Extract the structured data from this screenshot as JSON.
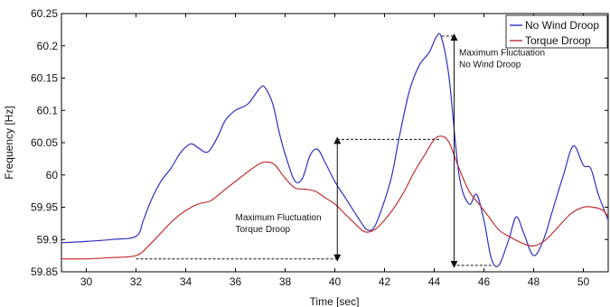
{
  "chart_data": {
    "type": "line",
    "xlabel": "Time [sec]",
    "ylabel": "Frequency [Hz]",
    "xlim": [
      29,
      51
    ],
    "ylim": [
      59.85,
      60.25
    ],
    "xticks": [
      "30",
      "32",
      "34",
      "36",
      "38",
      "40",
      "42",
      "44",
      "46",
      "48",
      "50"
    ],
    "yticks": [
      "59.85",
      "59.9",
      "59.95",
      "60",
      "60.05",
      "60.1",
      "60.15",
      "60.2",
      "60.25"
    ],
    "grid": false,
    "legend_position": "top-right",
    "series": [
      {
        "name": "No Wind Droop",
        "color": "#3030c0",
        "x": [
          29.0,
          30.0,
          31.0,
          32.0,
          32.3,
          32.6,
          33.0,
          33.4,
          33.8,
          34.2,
          34.5,
          34.8,
          35.0,
          35.3,
          35.6,
          36.0,
          36.5,
          37.0,
          37.2,
          37.5,
          37.8,
          38.1,
          38.4,
          38.7,
          39.0,
          39.3,
          39.6,
          40.0,
          40.5,
          41.0,
          41.3,
          41.6,
          42.0,
          42.3,
          42.6,
          43.0,
          43.4,
          43.8,
          44.1,
          44.3,
          44.6,
          45.0,
          45.4,
          45.7,
          46.0,
          46.3,
          46.6,
          47.0,
          47.3,
          47.6,
          48.0,
          48.4,
          48.8,
          49.2,
          49.6,
          50.0,
          50.3,
          50.6,
          51.0
        ],
        "y": [
          59.895,
          59.897,
          59.9,
          59.905,
          59.93,
          59.96,
          59.99,
          60.01,
          60.035,
          60.048,
          60.042,
          60.035,
          60.04,
          60.06,
          60.085,
          60.1,
          60.11,
          60.135,
          60.135,
          60.11,
          60.06,
          60.02,
          59.99,
          59.995,
          60.03,
          60.04,
          60.02,
          59.99,
          59.96,
          59.93,
          59.915,
          59.92,
          59.96,
          60.0,
          60.06,
          60.13,
          60.17,
          60.19,
          60.215,
          60.212,
          60.15,
          60.0,
          59.955,
          59.97,
          59.93,
          59.87,
          59.86,
          59.9,
          59.935,
          59.91,
          59.875,
          59.9,
          59.95,
          60.0,
          60.045,
          60.015,
          60.01,
          59.97,
          59.93
        ]
      },
      {
        "name": "Torque Droop",
        "color": "#c03030",
        "x": [
          29.0,
          30.0,
          31.0,
          32.0,
          32.5,
          33.0,
          33.5,
          34.0,
          34.5,
          35.0,
          35.5,
          36.0,
          36.5,
          37.0,
          37.3,
          37.6,
          38.0,
          38.4,
          38.8,
          39.2,
          39.6,
          40.0,
          40.4,
          40.8,
          41.2,
          41.6,
          42.0,
          42.4,
          42.8,
          43.2,
          43.6,
          44.0,
          44.3,
          44.6,
          45.0,
          45.4,
          45.8,
          46.2,
          46.6,
          47.0,
          47.5,
          48.0,
          48.5,
          49.0,
          49.5,
          50.0,
          50.4,
          50.8,
          51.0
        ],
        "y": [
          59.87,
          59.87,
          59.872,
          59.875,
          59.89,
          59.91,
          59.93,
          59.945,
          59.955,
          59.96,
          59.975,
          59.99,
          60.005,
          60.018,
          60.02,
          60.015,
          59.995,
          59.98,
          59.978,
          59.975,
          59.965,
          59.955,
          59.94,
          59.925,
          59.912,
          59.915,
          59.93,
          59.95,
          59.975,
          60.005,
          60.03,
          60.055,
          60.06,
          60.05,
          60.01,
          59.975,
          59.955,
          59.935,
          59.915,
          59.905,
          59.895,
          59.89,
          59.9,
          59.92,
          59.94,
          59.95,
          59.95,
          59.945,
          59.935
        ]
      }
    ],
    "annotations": [
      {
        "lines": [
          "Maximum Fluctuation",
          "No Wind Droop"
        ],
        "arrow_x": 44.8,
        "y_top": 60.215,
        "y_bottom": 59.86,
        "dash_top_from_x": 44.3,
        "dash_bottom_from_x": 46.3,
        "text_x": 45.0,
        "text_y": 60.185
      },
      {
        "lines": [
          "Maximum Fluctuation",
          "Torque Droop"
        ],
        "arrow_x": 40.1,
        "y_top": 60.055,
        "y_bottom": 59.87,
        "dash_top_from_x": 44.2,
        "dash_bottom_from_x": 32.0,
        "text_x": 36.0,
        "text_y": 59.93
      }
    ]
  }
}
